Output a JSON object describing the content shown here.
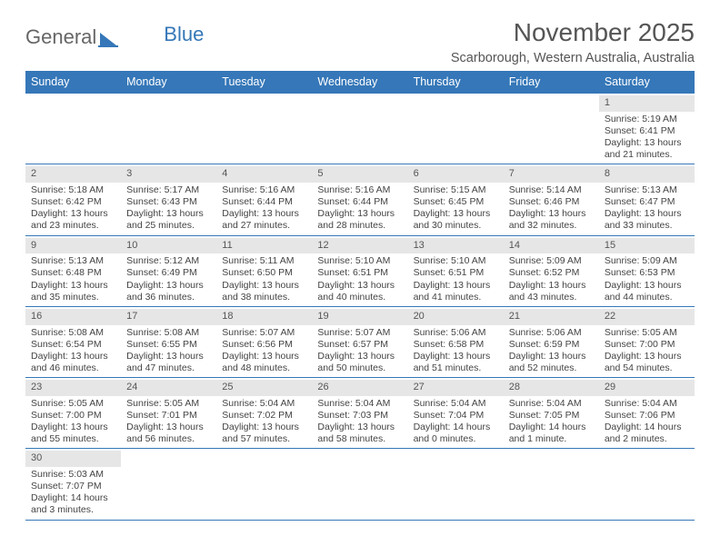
{
  "logo": {
    "part1": "General",
    "part2": "Blue"
  },
  "header": {
    "month_title": "November 2025",
    "location": "Scarborough, Western Australia, Australia"
  },
  "colors": {
    "header_bar": "#3577b8",
    "daynum_bg": "#e6e6e6",
    "week_border": "#3577b8",
    "text": "#444444",
    "title_text": "#555555"
  },
  "daynames": [
    "Sunday",
    "Monday",
    "Tuesday",
    "Wednesday",
    "Thursday",
    "Friday",
    "Saturday"
  ],
  "weeks": [
    [
      null,
      null,
      null,
      null,
      null,
      null,
      {
        "n": "1",
        "sr": "5:19 AM",
        "ss": "6:41 PM",
        "dl": "13 hours and 21 minutes."
      }
    ],
    [
      {
        "n": "2",
        "sr": "5:18 AM",
        "ss": "6:42 PM",
        "dl": "13 hours and 23 minutes."
      },
      {
        "n": "3",
        "sr": "5:17 AM",
        "ss": "6:43 PM",
        "dl": "13 hours and 25 minutes."
      },
      {
        "n": "4",
        "sr": "5:16 AM",
        "ss": "6:44 PM",
        "dl": "13 hours and 27 minutes."
      },
      {
        "n": "5",
        "sr": "5:16 AM",
        "ss": "6:44 PM",
        "dl": "13 hours and 28 minutes."
      },
      {
        "n": "6",
        "sr": "5:15 AM",
        "ss": "6:45 PM",
        "dl": "13 hours and 30 minutes."
      },
      {
        "n": "7",
        "sr": "5:14 AM",
        "ss": "6:46 PM",
        "dl": "13 hours and 32 minutes."
      },
      {
        "n": "8",
        "sr": "5:13 AM",
        "ss": "6:47 PM",
        "dl": "13 hours and 33 minutes."
      }
    ],
    [
      {
        "n": "9",
        "sr": "5:13 AM",
        "ss": "6:48 PM",
        "dl": "13 hours and 35 minutes."
      },
      {
        "n": "10",
        "sr": "5:12 AM",
        "ss": "6:49 PM",
        "dl": "13 hours and 36 minutes."
      },
      {
        "n": "11",
        "sr": "5:11 AM",
        "ss": "6:50 PM",
        "dl": "13 hours and 38 minutes."
      },
      {
        "n": "12",
        "sr": "5:10 AM",
        "ss": "6:51 PM",
        "dl": "13 hours and 40 minutes."
      },
      {
        "n": "13",
        "sr": "5:10 AM",
        "ss": "6:51 PM",
        "dl": "13 hours and 41 minutes."
      },
      {
        "n": "14",
        "sr": "5:09 AM",
        "ss": "6:52 PM",
        "dl": "13 hours and 43 minutes."
      },
      {
        "n": "15",
        "sr": "5:09 AM",
        "ss": "6:53 PM",
        "dl": "13 hours and 44 minutes."
      }
    ],
    [
      {
        "n": "16",
        "sr": "5:08 AM",
        "ss": "6:54 PM",
        "dl": "13 hours and 46 minutes."
      },
      {
        "n": "17",
        "sr": "5:08 AM",
        "ss": "6:55 PM",
        "dl": "13 hours and 47 minutes."
      },
      {
        "n": "18",
        "sr": "5:07 AM",
        "ss": "6:56 PM",
        "dl": "13 hours and 48 minutes."
      },
      {
        "n": "19",
        "sr": "5:07 AM",
        "ss": "6:57 PM",
        "dl": "13 hours and 50 minutes."
      },
      {
        "n": "20",
        "sr": "5:06 AM",
        "ss": "6:58 PM",
        "dl": "13 hours and 51 minutes."
      },
      {
        "n": "21",
        "sr": "5:06 AM",
        "ss": "6:59 PM",
        "dl": "13 hours and 52 minutes."
      },
      {
        "n": "22",
        "sr": "5:05 AM",
        "ss": "7:00 PM",
        "dl": "13 hours and 54 minutes."
      }
    ],
    [
      {
        "n": "23",
        "sr": "5:05 AM",
        "ss": "7:00 PM",
        "dl": "13 hours and 55 minutes."
      },
      {
        "n": "24",
        "sr": "5:05 AM",
        "ss": "7:01 PM",
        "dl": "13 hours and 56 minutes."
      },
      {
        "n": "25",
        "sr": "5:04 AM",
        "ss": "7:02 PM",
        "dl": "13 hours and 57 minutes."
      },
      {
        "n": "26",
        "sr": "5:04 AM",
        "ss": "7:03 PM",
        "dl": "13 hours and 58 minutes."
      },
      {
        "n": "27",
        "sr": "5:04 AM",
        "ss": "7:04 PM",
        "dl": "14 hours and 0 minutes."
      },
      {
        "n": "28",
        "sr": "5:04 AM",
        "ss": "7:05 PM",
        "dl": "14 hours and 1 minute."
      },
      {
        "n": "29",
        "sr": "5:04 AM",
        "ss": "7:06 PM",
        "dl": "14 hours and 2 minutes."
      }
    ],
    [
      {
        "n": "30",
        "sr": "5:03 AM",
        "ss": "7:07 PM",
        "dl": "14 hours and 3 minutes."
      },
      null,
      null,
      null,
      null,
      null,
      null
    ]
  ],
  "labels": {
    "sunrise": "Sunrise: ",
    "sunset": "Sunset: ",
    "daylight": "Daylight: "
  }
}
